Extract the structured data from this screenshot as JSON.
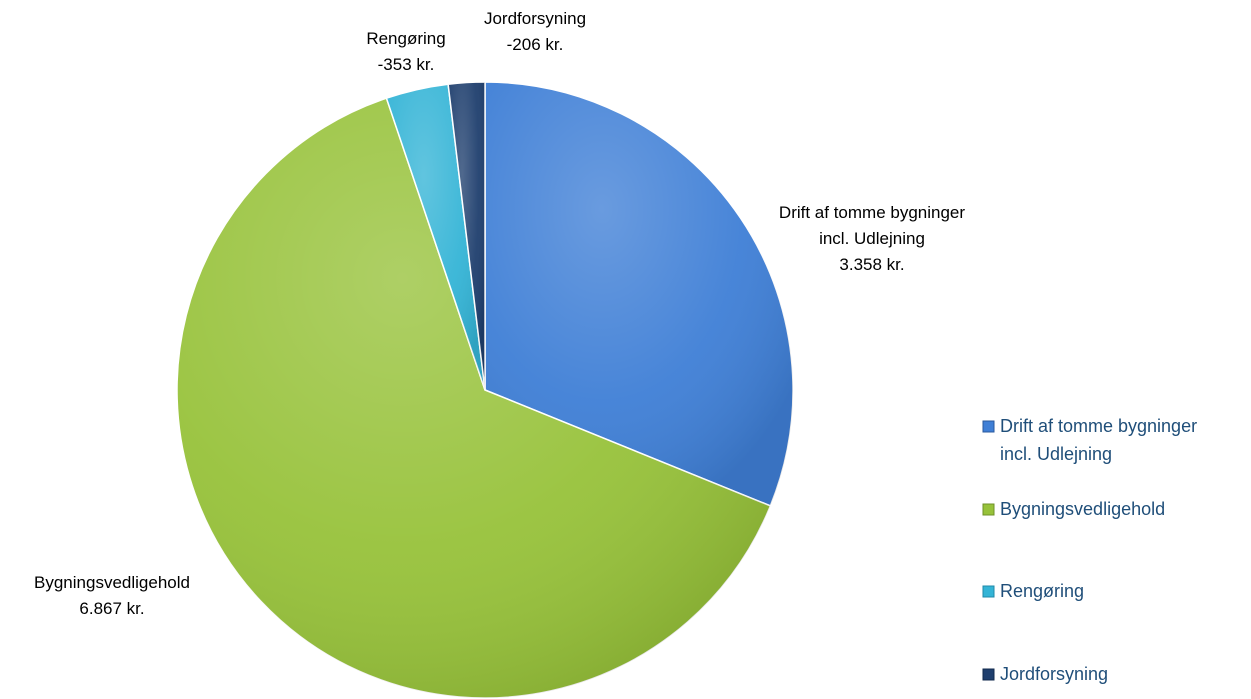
{
  "chart_data": {
    "type": "pie",
    "title": "",
    "slices": [
      {
        "name": "Drift af tomme bygninger incl. Udlejning",
        "name_lines": [
          "Drift af tomme bygninger",
          "incl. Udlejning"
        ],
        "value": 3358,
        "value_label": "3.358 kr.",
        "color": "#3f7fd6",
        "edge": "#2a5a9e"
      },
      {
        "name": "Bygningsvedligehold",
        "name_lines": [
          "Bygningsvedligehold"
        ],
        "value": 6867,
        "value_label": "6.867 kr.",
        "color": "#97c23a",
        "edge": "#6f9128"
      },
      {
        "name": "Rengøring",
        "name_lines": [
          "Rengøring"
        ],
        "value": 353,
        "value_label": "-353 kr.",
        "color": "#34b4d6",
        "edge": "#1f8aa8"
      },
      {
        "name": "Jordforsyning",
        "name_lines": [
          "Jordforsyning"
        ],
        "value": 206,
        "value_label": "-206 kr.",
        "color": "#1f3f6e",
        "edge": "#122a4c"
      }
    ],
    "legend": {
      "placement": "right",
      "entries": [
        {
          "lines": [
            "Drift af tomme bygninger",
            "incl. Udlejning"
          ]
        },
        {
          "lines": [
            "Bygningsvedligehold"
          ]
        },
        {
          "lines": [
            "Rengøring"
          ]
        },
        {
          "lines": [
            "Jordforsyning"
          ]
        }
      ]
    }
  }
}
